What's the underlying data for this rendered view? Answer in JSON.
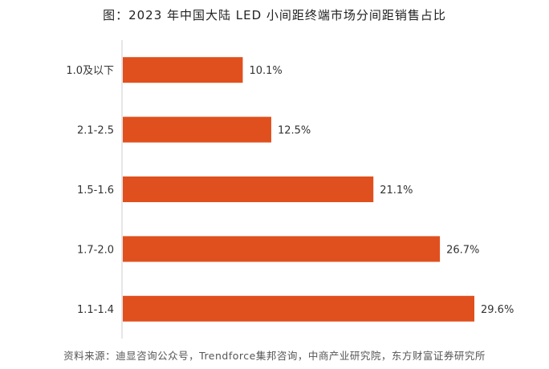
{
  "title": "图：2023 年中国大陆 LED 小间距终端市场分间距销售占比",
  "source": "资料来源：迪显咨询公众号，Trendforce集邦咨询，中商产业研究院，东方财富证券研究所",
  "colors": {
    "bar": "#e0501e",
    "axis": "#cccccc",
    "label": "#333333"
  },
  "chart_data": {
    "type": "bar",
    "orientation": "horizontal",
    "categories": [
      "1.0及以下",
      "2.1-2.5",
      "1.5-1.6",
      "1.7-2.0",
      "1.1-1.4"
    ],
    "values": [
      10.1,
      12.5,
      21.1,
      26.7,
      29.6
    ],
    "value_labels": [
      "10.1%",
      "12.5%",
      "21.1%",
      "26.7%",
      "29.6%"
    ],
    "xlim": [
      0,
      29.6
    ],
    "grid": false
  }
}
